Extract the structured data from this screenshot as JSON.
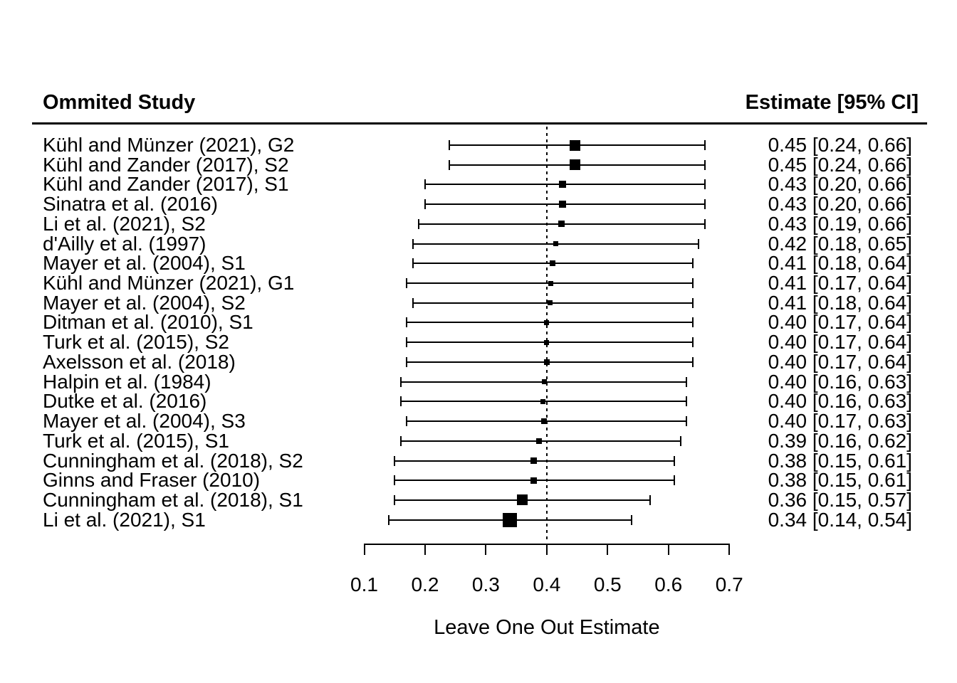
{
  "header": {
    "left_column": "Ommited Study",
    "right_column": "Estimate [95% CI]"
  },
  "colors": {
    "foreground": "#000000",
    "background": "#ffffff",
    "marker": "#000000"
  },
  "chart_data": {
    "type": "forest",
    "xlabel": "Leave One Out Estimate",
    "xlim": [
      0.1,
      0.7
    ],
    "x_tick_labels": [
      "0.1",
      "0.2",
      "0.3",
      "0.4",
      "0.5",
      "0.6",
      "0.7"
    ],
    "ref_line_value": 0.4,
    "grid": false,
    "rows": [
      {
        "study": "Kühl and Münzer (2021), G2",
        "estimate": 0.45,
        "ci_lower": 0.24,
        "ci_upper": 0.66,
        "estimate_text": "0.45 [0.24, 0.66]",
        "plot_estimate": 0.446,
        "marker_size_px": 15
      },
      {
        "study": "Kühl and Zander (2017), S2",
        "estimate": 0.45,
        "ci_lower": 0.24,
        "ci_upper": 0.66,
        "estimate_text": "0.45 [0.24, 0.66]",
        "plot_estimate": 0.446,
        "marker_size_px": 15
      },
      {
        "study": "Kühl and Zander (2017), S1",
        "estimate": 0.43,
        "ci_lower": 0.2,
        "ci_upper": 0.66,
        "estimate_text": "0.43 [0.20, 0.66]",
        "plot_estimate": 0.426,
        "marker_size_px": 10
      },
      {
        "study": "Sinatra et al. (2016)",
        "estimate": 0.43,
        "ci_lower": 0.2,
        "ci_upper": 0.66,
        "estimate_text": "0.43 [0.20, 0.66]",
        "plot_estimate": 0.426,
        "marker_size_px": 10
      },
      {
        "study": "Li et al. (2021), S2",
        "estimate": 0.43,
        "ci_lower": 0.19,
        "ci_upper": 0.66,
        "estimate_text": "0.43 [0.19, 0.66]",
        "plot_estimate": 0.424,
        "marker_size_px": 9
      },
      {
        "study": "d'Ailly et al. (1997)",
        "estimate": 0.42,
        "ci_lower": 0.18,
        "ci_upper": 0.65,
        "estimate_text": "0.42 [0.18, 0.65]",
        "plot_estimate": 0.415,
        "marker_size_px": 7
      },
      {
        "study": "Mayer et al. (2004), S1",
        "estimate": 0.41,
        "ci_lower": 0.18,
        "ci_upper": 0.64,
        "estimate_text": "0.41 [0.18, 0.64]",
        "plot_estimate": 0.409,
        "marker_size_px": 8
      },
      {
        "study": "Kühl and Münzer (2021), G1",
        "estimate": 0.41,
        "ci_lower": 0.17,
        "ci_upper": 0.64,
        "estimate_text": "0.41 [0.17, 0.64]",
        "plot_estimate": 0.407,
        "marker_size_px": 7
      },
      {
        "study": "Mayer et al. (2004), S2",
        "estimate": 0.41,
        "ci_lower": 0.18,
        "ci_upper": 0.64,
        "estimate_text": "0.41 [0.18, 0.64]",
        "plot_estimate": 0.405,
        "marker_size_px": 7
      },
      {
        "study": "Ditman et al. (2010), S1",
        "estimate": 0.4,
        "ci_lower": 0.17,
        "ci_upper": 0.64,
        "estimate_text": "0.40 [0.17, 0.64]",
        "plot_estimate": 0.4,
        "marker_size_px": 7
      },
      {
        "study": "Turk et al. (2015), S2",
        "estimate": 0.4,
        "ci_lower": 0.17,
        "ci_upper": 0.64,
        "estimate_text": "0.40 [0.17, 0.64]",
        "plot_estimate": 0.4,
        "marker_size_px": 7
      },
      {
        "study": "Axelsson et al. (2018)",
        "estimate": 0.4,
        "ci_lower": 0.17,
        "ci_upper": 0.64,
        "estimate_text": "0.40 [0.17, 0.64]",
        "plot_estimate": 0.4,
        "marker_size_px": 8
      },
      {
        "study": "Halpin et al. (1984)",
        "estimate": 0.4,
        "ci_lower": 0.16,
        "ci_upper": 0.63,
        "estimate_text": "0.40 [0.16, 0.63]",
        "plot_estimate": 0.396,
        "marker_size_px": 7
      },
      {
        "study": "Dutke et al. (2016)",
        "estimate": 0.4,
        "ci_lower": 0.16,
        "ci_upper": 0.63,
        "estimate_text": "0.40 [0.16, 0.63]",
        "plot_estimate": 0.394,
        "marker_size_px": 7
      },
      {
        "study": "Mayer et al. (2004), S3",
        "estimate": 0.4,
        "ci_lower": 0.17,
        "ci_upper": 0.63,
        "estimate_text": "0.40 [0.17, 0.63]",
        "plot_estimate": 0.395,
        "marker_size_px": 8
      },
      {
        "study": "Turk et al. (2015), S1",
        "estimate": 0.39,
        "ci_lower": 0.16,
        "ci_upper": 0.62,
        "estimate_text": "0.39 [0.16, 0.62]",
        "plot_estimate": 0.387,
        "marker_size_px": 8
      },
      {
        "study": "Cunningham et al. (2018), S2",
        "estimate": 0.38,
        "ci_lower": 0.15,
        "ci_upper": 0.61,
        "estimate_text": "0.38 [0.15, 0.61]",
        "plot_estimate": 0.378,
        "marker_size_px": 9
      },
      {
        "study": "Ginns and Fraser (2010)",
        "estimate": 0.38,
        "ci_lower": 0.15,
        "ci_upper": 0.61,
        "estimate_text": "0.38 [0.15, 0.61]",
        "plot_estimate": 0.378,
        "marker_size_px": 9
      },
      {
        "study": "Cunningham et al. (2018), S1",
        "estimate": 0.36,
        "ci_lower": 0.15,
        "ci_upper": 0.57,
        "estimate_text": "0.36 [0.15, 0.57]",
        "plot_estimate": 0.36,
        "marker_size_px": 15
      },
      {
        "study": "Li et al. (2021), S1",
        "estimate": 0.34,
        "ci_lower": 0.14,
        "ci_upper": 0.54,
        "estimate_text": "0.34 [0.14, 0.54]",
        "plot_estimate": 0.339,
        "marker_size_px": 20
      }
    ]
  }
}
